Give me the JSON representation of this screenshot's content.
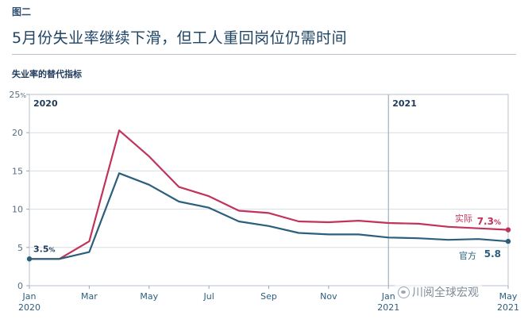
{
  "figure_label": "图二",
  "headline": "5月份失业率继续下滑，但工人重回岗位仍需时间",
  "watermark": "川阅全球宏观",
  "chart_data": {
    "type": "line",
    "subtitle": "失业率的替代指标",
    "x": [
      "2020-01",
      "2020-02",
      "2020-03",
      "2020-04",
      "2020-05",
      "2020-06",
      "2020-07",
      "2020-08",
      "2020-09",
      "2020-10",
      "2020-11",
      "2020-12",
      "2021-01",
      "2021-02",
      "2021-03",
      "2021-04",
      "2021-05"
    ],
    "ylim": [
      0,
      25
    ],
    "yticks": [
      {
        "value": 0,
        "label": "0"
      },
      {
        "value": 5,
        "label": "5"
      },
      {
        "value": 10,
        "label": "10"
      },
      {
        "value": 15,
        "label": "15"
      },
      {
        "value": 20,
        "label": "20"
      },
      {
        "value": 25,
        "label": "25%"
      }
    ],
    "xticks": [
      {
        "x": "2020-01",
        "label": "Jan",
        "sub": "2020"
      },
      {
        "x": "2020-03",
        "label": "Mar",
        "sub": ""
      },
      {
        "x": "2020-05",
        "label": "May",
        "sub": ""
      },
      {
        "x": "2020-07",
        "label": "Jul",
        "sub": ""
      },
      {
        "x": "2020-09",
        "label": "Sep",
        "sub": ""
      },
      {
        "x": "2020-11",
        "label": "Nov",
        "sub": ""
      },
      {
        "x": "2021-01",
        "label": "Jan",
        "sub": "2021"
      },
      {
        "x": "2021-05",
        "label": "May",
        "sub": "2021"
      }
    ],
    "period_labels": [
      {
        "x": "2020-01",
        "text": "2020"
      },
      {
        "x": "2021-01",
        "text": "2021"
      }
    ],
    "divider_at": "2021-01",
    "grid": true,
    "series": [
      {
        "name": "实际",
        "color": "#c0335a",
        "values": [
          3.5,
          3.5,
          5.8,
          20.3,
          16.9,
          12.9,
          11.7,
          9.8,
          9.5,
          8.4,
          8.3,
          8.5,
          8.2,
          8.1,
          7.7,
          7.5,
          7.3
        ],
        "end_label": "7.3%"
      },
      {
        "name": "官方",
        "color": "#2b5f7d",
        "values": [
          3.5,
          3.5,
          4.4,
          14.7,
          13.2,
          11.0,
          10.2,
          8.4,
          7.8,
          6.9,
          6.7,
          6.7,
          6.3,
          6.2,
          6.0,
          6.1,
          5.8
        ],
        "end_label": "5.8"
      }
    ],
    "start_label": "3.5%"
  }
}
